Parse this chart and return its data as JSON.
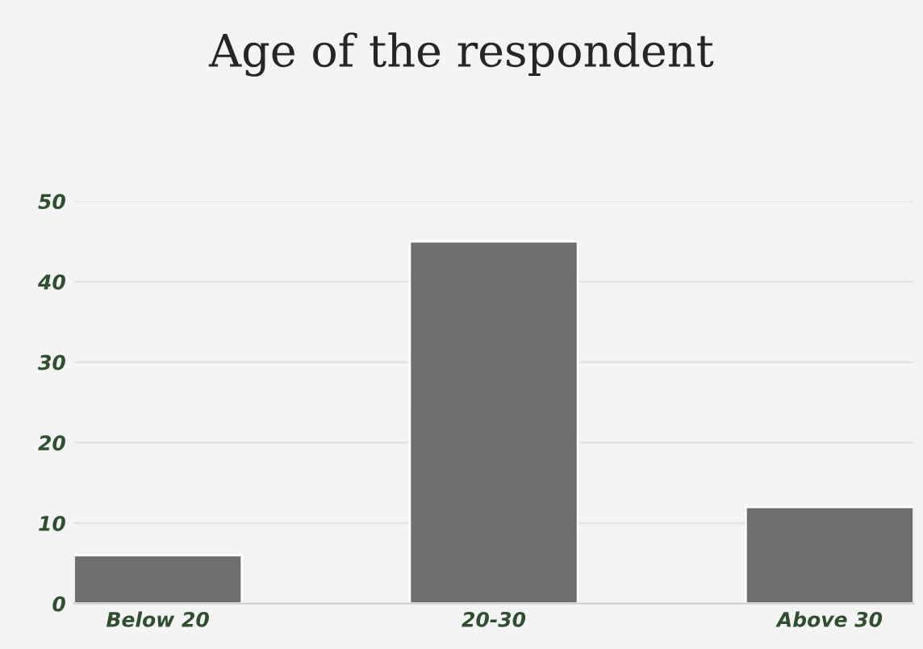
{
  "chart_data": {
    "type": "bar",
    "title": "Age of the respondent",
    "categories": [
      "Below 20",
      "20-30",
      "Above 30"
    ],
    "values": [
      6,
      45,
      12
    ],
    "color": "#6e6e6e",
    "ylim": [
      0,
      50
    ],
    "yticks": [
      0,
      10,
      20,
      30,
      40,
      50
    ],
    "grid": "y"
  }
}
